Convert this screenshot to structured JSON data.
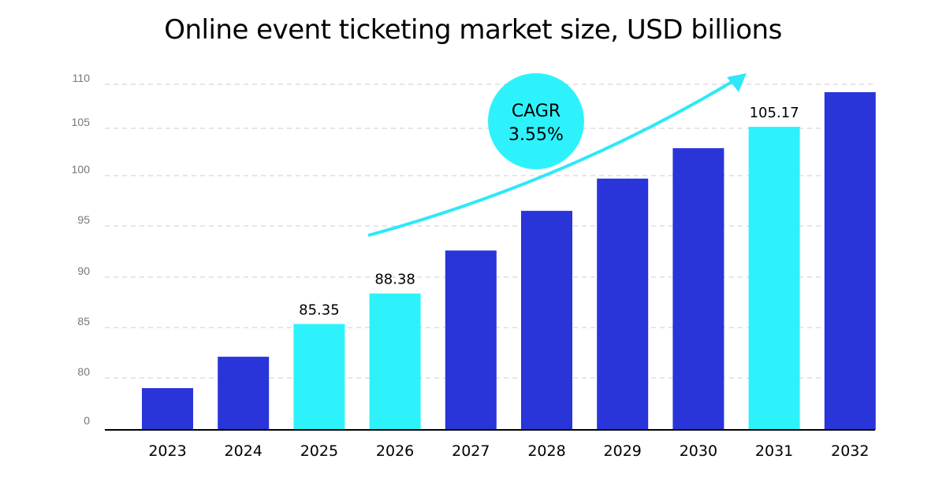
{
  "chart_data": {
    "type": "bar",
    "title": "Online event ticketing market size, USD billions",
    "xlabel": "",
    "ylabel": "",
    "categories": [
      "2023",
      "2024",
      "2025",
      "2026",
      "2027",
      "2028",
      "2029",
      "2030",
      "2031",
      "2032"
    ],
    "values": [
      79.0,
      82.1,
      85.35,
      88.38,
      92.6,
      96.5,
      99.7,
      102.9,
      105.17,
      109.1
    ],
    "data_labels": {
      "2025": "85.35",
      "2026": "88.38",
      "2031": "105.17"
    },
    "highlighted": [
      "2025",
      "2026",
      "2031"
    ],
    "yticks": [
      "0",
      "80",
      "85",
      "90",
      "95",
      "100",
      "105",
      "110"
    ],
    "axis_break": "0 to 80",
    "ylim": [
      80,
      110
    ],
    "grid": "horizontal dashed",
    "colors": {
      "bar": "#2934d9",
      "highlight": "#2ef2fb",
      "arrow": "#2ee8f8",
      "grid": "#cccccc",
      "tick_text": "#777777"
    },
    "annotation": {
      "line1": "CAGR",
      "line2": "3.55%"
    }
  }
}
